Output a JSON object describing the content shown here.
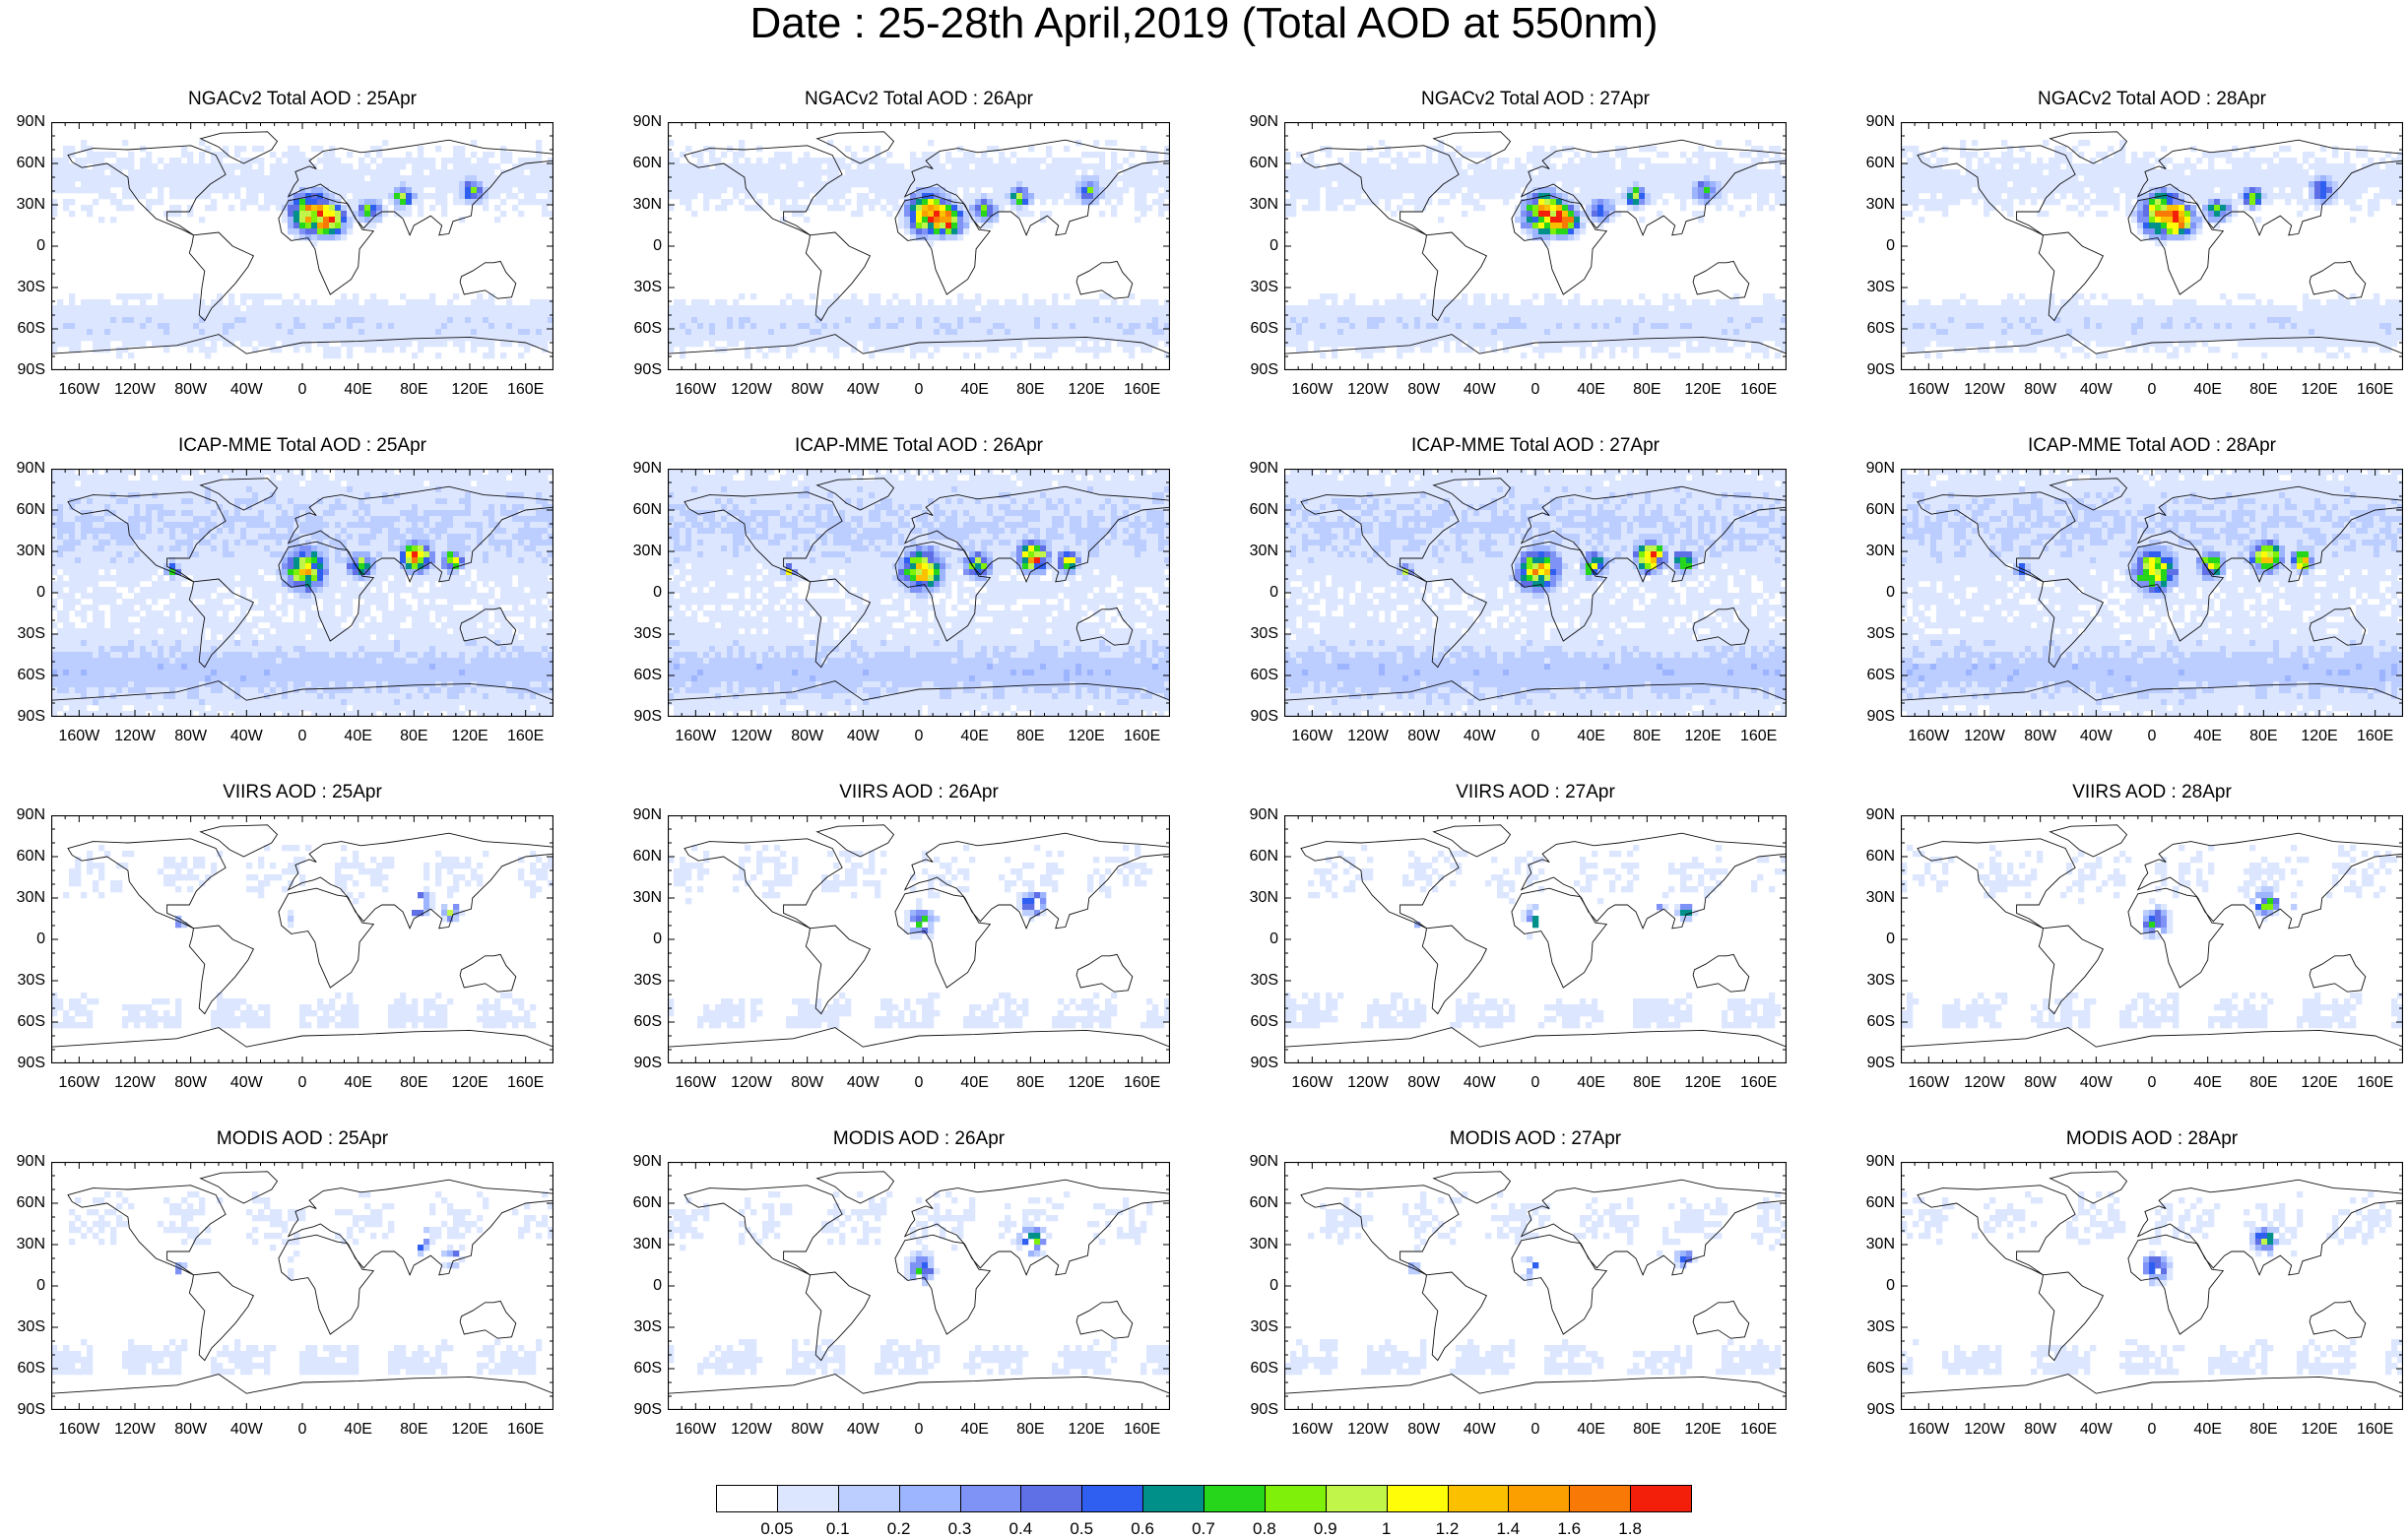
{
  "title": "Date : 25-28th April,2019 (Total AOD at 550nm)",
  "lat_labels": [
    "90N",
    "60N",
    "30N",
    "0",
    "30S",
    "60S",
    "90S"
  ],
  "lon_labels": [
    "160W",
    "120W",
    "80W",
    "40W",
    "0",
    "40E",
    "80E",
    "120E",
    "160E"
  ],
  "rows": [
    {
      "model": "NGACv2",
      "type": "field",
      "panels": [
        "NGACv2 Total AOD : 25Apr",
        "NGACv2 Total AOD : 26Apr",
        "NGACv2 Total AOD : 27Apr",
        "NGACv2 Total AOD : 28Apr"
      ]
    },
    {
      "model": "ICAP-MME",
      "type": "field",
      "panels": [
        "ICAP-MME Total AOD : 25Apr",
        "ICAP-MME Total AOD : 26Apr",
        "ICAP-MME Total AOD : 27Apr",
        "ICAP-MME Total AOD : 28Apr"
      ]
    },
    {
      "model": "VIIRS",
      "type": "swath",
      "panels": [
        "VIIRS AOD : 25Apr",
        "VIIRS AOD : 26Apr",
        "VIIRS AOD : 27Apr",
        "VIIRS AOD : 28Apr"
      ]
    },
    {
      "model": "MODIS",
      "type": "swath",
      "panels": [
        "MODIS AOD : 25Apr",
        "MODIS AOD : 26Apr",
        "MODIS AOD : 27Apr",
        "MODIS AOD : 28Apr"
      ]
    }
  ],
  "colorbar": {
    "labels": [
      "0.05",
      "0.1",
      "0.2",
      "0.3",
      "0.4",
      "0.5",
      "0.6",
      "0.7",
      "0.8",
      "0.9",
      "1",
      "1.2",
      "1.4",
      "1.6",
      "1.8"
    ],
    "colors": [
      "#ffffff",
      "#dce6ff",
      "#bccdff",
      "#9db4ff",
      "#7f92f6",
      "#5f6fe6",
      "#2f5ff0",
      "#00908a",
      "#25d61b",
      "#7ef00a",
      "#c2f54a",
      "#fffd08",
      "#fbc100",
      "#fb9e00",
      "#f97906",
      "#f41f0b"
    ]
  }
}
